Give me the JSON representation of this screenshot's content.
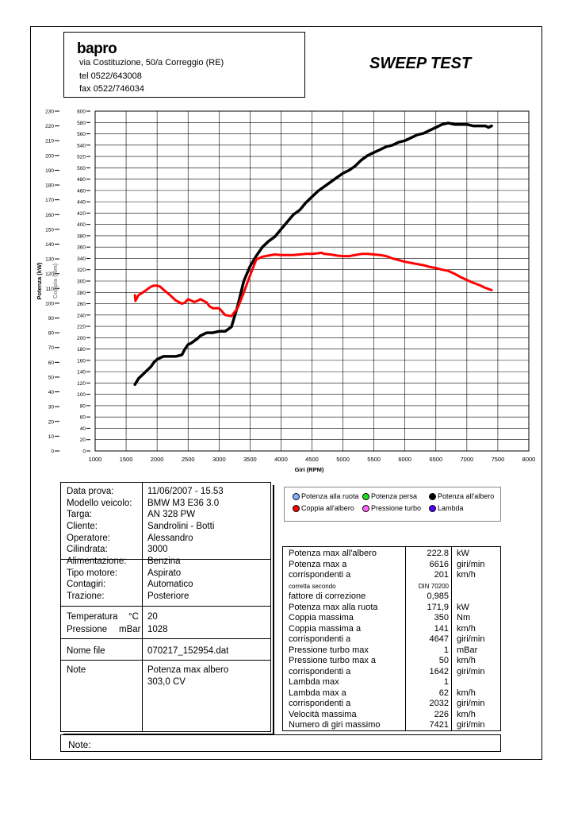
{
  "header": {
    "logo": "bapro",
    "address": "via Costituzione, 50/a Correggio (RE)",
    "tel": "tel 0522/643008",
    "fax": "fax 0522/746034",
    "title": "SWEEP TEST"
  },
  "chart_data": {
    "type": "line",
    "xlabel": "Giri (RPM)",
    "ylabel": "Potenza (kW)",
    "ylabel2": "Coppia (Nm)",
    "xlim": [
      1000,
      8000
    ],
    "ylim": [
      0,
      230
    ],
    "ylim2": [
      0,
      600
    ],
    "x_ticks": [
      1000,
      1500,
      2000,
      2500,
      3000,
      3500,
      4000,
      4500,
      5000,
      5500,
      6000,
      6500,
      7000,
      7500,
      8000
    ],
    "y_ticks": [
      0,
      10,
      20,
      30,
      40,
      50,
      60,
      70,
      80,
      90,
      100,
      110,
      120,
      130,
      140,
      150,
      160,
      170,
      180,
      190,
      200,
      210,
      220,
      230
    ],
    "y2_ticks": [
      0,
      20,
      40,
      60,
      80,
      100,
      120,
      140,
      160,
      180,
      200,
      220,
      240,
      260,
      280,
      300,
      320,
      340,
      360,
      380,
      400,
      420,
      440,
      460,
      480,
      500,
      520,
      540,
      560,
      580,
      600
    ],
    "grid": true,
    "series": [
      {
        "name": "Potenza all'albero",
        "axis": "power",
        "color": "#000000",
        "x": [
          1642,
          1700,
          1800,
          1900,
          1950,
          2000,
          2100,
          2200,
          2300,
          2400,
          2450,
          2500,
          2550,
          2650,
          2700,
          2800,
          2900,
          3000,
          3100,
          3200,
          3300,
          3400,
          3500,
          3600,
          3700,
          3800,
          3900,
          4000,
          4100,
          4200,
          4300,
          4400,
          4500,
          4600,
          4700,
          4800,
          4900,
          5000,
          5100,
          5200,
          5300,
          5400,
          5500,
          5600,
          5700,
          5800,
          5900,
          6000,
          6100,
          6200,
          6300,
          6400,
          6500,
          6600,
          6700,
          6800,
          6900,
          7000,
          7100,
          7200,
          7300,
          7350,
          7400
        ],
        "y": [
          45,
          49,
          53,
          57,
          60,
          62,
          64,
          64,
          64,
          65,
          69,
          72,
          73,
          76,
          78,
          80,
          80,
          81,
          81,
          84,
          98,
          115,
          125,
          132,
          138,
          142,
          145,
          150,
          155,
          160,
          163,
          168,
          172,
          176,
          179,
          182,
          185,
          188,
          190,
          193,
          197,
          200,
          202,
          204,
          206,
          207,
          209,
          210,
          212,
          214,
          215,
          217,
          219,
          221,
          222,
          221,
          221,
          221,
          220,
          220,
          220,
          219,
          220
        ]
      },
      {
        "name": "Coppia all'albero",
        "axis": "torque",
        "color": "#ff0000",
        "x": [
          1642,
          1650,
          1700,
          1800,
          1900,
          1950,
          2000,
          2050,
          2100,
          2200,
          2300,
          2400,
          2450,
          2500,
          2600,
          2650,
          2700,
          2800,
          2850,
          2900,
          3000,
          3100,
          3200,
          3300,
          3400,
          3500,
          3600,
          3700,
          3800,
          3900,
          4000,
          4100,
          4200,
          4300,
          4400,
          4500,
          4600,
          4647,
          4700,
          4800,
          4900,
          5000,
          5100,
          5200,
          5300,
          5400,
          5500,
          5600,
          5700,
          5800,
          5900,
          6000,
          6100,
          6200,
          6300,
          6400,
          6500,
          6600,
          6700,
          6800,
          6900,
          7000,
          7100,
          7200,
          7300,
          7400
        ],
        "y": [
          275,
          265,
          275,
          282,
          290,
          292,
          292,
          290,
          285,
          276,
          266,
          260,
          262,
          268,
          263,
          265,
          268,
          262,
          255,
          252,
          252,
          240,
          238,
          252,
          280,
          310,
          338,
          343,
          345,
          347,
          346,
          346,
          346,
          347,
          348,
          348,
          349,
          350,
          348,
          347,
          345,
          344,
          344,
          346,
          348,
          348,
          347,
          346,
          344,
          340,
          337,
          334,
          332,
          330,
          328,
          325,
          323,
          320,
          318,
          313,
          307,
          302,
          297,
          293,
          288,
          284
        ]
      }
    ]
  },
  "info": {
    "rows": [
      {
        "label": "Data prova:",
        "unit": "",
        "value": "11/06/2007 - 15.53"
      },
      {
        "label": "Modello veicolo:",
        "unit": "",
        "value": "BMW M3 E36 3.0"
      },
      {
        "label": "Targa:",
        "unit": "",
        "value": "AN 328 PW"
      },
      {
        "label": "Cliente:",
        "unit": "",
        "value": "Sandrolini - Botti"
      },
      {
        "label": "Operatore:",
        "unit": "",
        "value": "Alessandro"
      },
      {
        "label": "Cilindrata:",
        "unit": "",
        "value": "3000"
      },
      {
        "label": "Alimentazione:",
        "unit": "",
        "value": "Benzina"
      },
      {
        "label": "Tipo motore:",
        "unit": "",
        "value": "Aspirato"
      },
      {
        "label": "Contagiri:",
        "unit": "",
        "value": "Automatico"
      },
      {
        "label": "Trazione:",
        "unit": "",
        "value": "Posteriore"
      },
      {
        "label": "Temperatura",
        "unit": "°C",
        "value": "20"
      },
      {
        "label": "Pressione",
        "unit": "mBar",
        "value": "1028"
      },
      {
        "label": "Nome file",
        "unit": "",
        "value": "070217_152954.dat"
      },
      {
        "label": "Note",
        "unit": "",
        "value": "Potenza max albero"
      },
      {
        "label": "",
        "unit": "",
        "value": "303,0  CV"
      }
    ]
  },
  "legend": [
    {
      "label": "Potenza alla ruota",
      "color": "#7fb2ff"
    },
    {
      "label": "Potenza persa",
      "color": "#22dd22"
    },
    {
      "label": "Potenza all'albero",
      "color": "#000000"
    },
    {
      "label": "Coppia all'albero",
      "color": "#ff0000"
    },
    {
      "label": "Pressione turbo",
      "color": "#ff66ff"
    },
    {
      "label": "Lambda",
      "color": "#5500ff"
    }
  ],
  "results": [
    {
      "label": "Potenza max all'albero",
      "value": "222.8",
      "unit": "kW"
    },
    {
      "label": "Potenza max a",
      "value": "6616",
      "unit": "giri/min"
    },
    {
      "label": "corrispondenti a",
      "value": "201",
      "unit": "km/h"
    },
    {
      "label": "corretta secondo",
      "value": "DIN 70200",
      "unit": "",
      "small": true
    },
    {
      "label": "fattore di correzione",
      "value": "0,985",
      "unit": ""
    },
    {
      "label": "Potenza max alla ruota",
      "value": "171,9",
      "unit": "kW"
    },
    {
      "label": "Coppia massima",
      "value": "350",
      "unit": "Nm"
    },
    {
      "label": "Coppia massima a",
      "value": "141",
      "unit": "km/h"
    },
    {
      "label": "corrispondenti a",
      "value": "4647",
      "unit": "giri/min"
    },
    {
      "label": "Pressione turbo max",
      "value": "1",
      "unit": "mBar"
    },
    {
      "label": "Pressione turbo max a",
      "value": "50",
      "unit": "km/h"
    },
    {
      "label": "corrispondenti a",
      "value": "1642",
      "unit": "giri/min"
    },
    {
      "label": "Lambda max",
      "value": "1",
      "unit": ""
    },
    {
      "label": "Lambda max a",
      "value": "62",
      "unit": "km/h"
    },
    {
      "label": "corrispondenti a",
      "value": "2032",
      "unit": "giri/min"
    },
    {
      "label": "Velocità massima",
      "value": "226",
      "unit": "km/h"
    },
    {
      "label": "Numero di giri massimo",
      "value": "7421",
      "unit": "giri/min"
    }
  ],
  "note": {
    "label": "Note:"
  }
}
